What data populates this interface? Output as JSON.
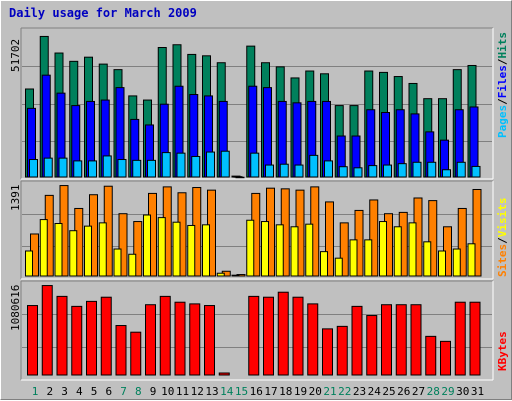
{
  "title": "Daily usage for March 2009",
  "colors": {
    "hits": "#00805c",
    "files": "#0000ff",
    "pages": "#00c0ff",
    "visits": "#ffff00",
    "sites": "#ff8000",
    "kbytes": "#ff0000",
    "weekday": "#000000",
    "weekend": "#00805c",
    "slash": "#000000"
  },
  "chart_data": [
    {
      "type": "bar",
      "categories": [
        "1",
        "2",
        "3",
        "4",
        "5",
        "6",
        "7",
        "8",
        "9",
        "10",
        "11",
        "12",
        "13",
        "14",
        "15",
        "16",
        "17",
        "18",
        "19",
        "20",
        "21",
        "22",
        "23",
        "24",
        "25",
        "26",
        "27",
        "28",
        "29",
        "30",
        "31"
      ],
      "weekend": [
        "1",
        "7",
        "8",
        "14",
        "15",
        "21",
        "22",
        "28",
        "29"
      ],
      "scale_label": "51702",
      "ymax": 51702,
      "legend": [
        "Pages",
        "Files",
        "Hits"
      ],
      "series": [
        {
          "name": "Hits",
          "values": [
            32000,
            51000,
            45000,
            42000,
            43500,
            41000,
            39000,
            29500,
            28000,
            47000,
            48000,
            44500,
            44000,
            41500,
            500,
            47500,
            41500,
            40000,
            36000,
            38500,
            37500,
            26000,
            26000,
            38500,
            38000,
            36500,
            34000,
            28500,
            28500,
            39000,
            40500
          ]
        },
        {
          "name": "Files",
          "values": [
            25000,
            37000,
            30500,
            26000,
            27500,
            28000,
            32500,
            21000,
            19000,
            26500,
            33000,
            30000,
            29500,
            27500,
            300,
            33000,
            32500,
            27500,
            27000,
            27500,
            27500,
            15000,
            15000,
            24500,
            23500,
            24500,
            23000,
            16500,
            13500,
            24500,
            25500
          ]
        },
        {
          "name": "Pages",
          "values": [
            6500,
            7000,
            7000,
            6000,
            6000,
            7800,
            6500,
            6200,
            6200,
            9000,
            8800,
            7600,
            9200,
            9500,
            100,
            8800,
            4500,
            4800,
            4500,
            8000,
            6000,
            3900,
            3500,
            4300,
            4500,
            5000,
            5500,
            5500,
            2800,
            5500,
            4000
          ]
        }
      ]
    },
    {
      "type": "bar",
      "categories": [
        "1",
        "2",
        "3",
        "4",
        "5",
        "6",
        "7",
        "8",
        "9",
        "10",
        "11",
        "12",
        "13",
        "14",
        "15",
        "16",
        "17",
        "18",
        "19",
        "20",
        "21",
        "22",
        "23",
        "24",
        "25",
        "26",
        "27",
        "28",
        "29",
        "30",
        "31"
      ],
      "scale_label": "1391",
      "ymax": 1391,
      "legend": [
        "Sites",
        "Visits"
      ],
      "series": [
        {
          "name": "Visits",
          "values": [
            390,
            870,
            810,
            700,
            770,
            820,
            420,
            340,
            940,
            900,
            830,
            780,
            790,
            50,
            20,
            860,
            840,
            790,
            760,
            800,
            380,
            280,
            560,
            560,
            840,
            760,
            820,
            530,
            390,
            420,
            500
          ]
        },
        {
          "name": "Sites",
          "values": [
            650,
            1240,
            1390,
            1040,
            1250,
            1380,
            960,
            840,
            1270,
            1370,
            1280,
            1360,
            1320,
            80,
            30,
            1270,
            1350,
            1340,
            1320,
            1370,
            1140,
            820,
            1010,
            1170,
            960,
            980,
            1200,
            1160,
            760,
            1040,
            1330
          ]
        }
      ]
    },
    {
      "type": "bar",
      "categories": [
        "1",
        "2",
        "3",
        "4",
        "5",
        "6",
        "7",
        "8",
        "9",
        "10",
        "11",
        "12",
        "13",
        "14",
        "15",
        "16",
        "17",
        "18",
        "19",
        "20",
        "21",
        "22",
        "23",
        "24",
        "25",
        "26",
        "27",
        "28",
        "29",
        "30",
        "31"
      ],
      "scale_label": "1080616",
      "ymax": 1080616,
      "legend": [
        "KBytes"
      ],
      "series": [
        {
          "name": "KBytes",
          "values": [
            840000,
            1080000,
            950000,
            830000,
            890000,
            940000,
            600000,
            520000,
            850000,
            950000,
            880000,
            860000,
            840000,
            30000,
            0,
            950000,
            940000,
            1000000,
            940000,
            860000,
            560000,
            590000,
            830000,
            720000,
            850000,
            850000,
            850000,
            470000,
            410000,
            880000,
            880000
          ]
        }
      ]
    }
  ]
}
